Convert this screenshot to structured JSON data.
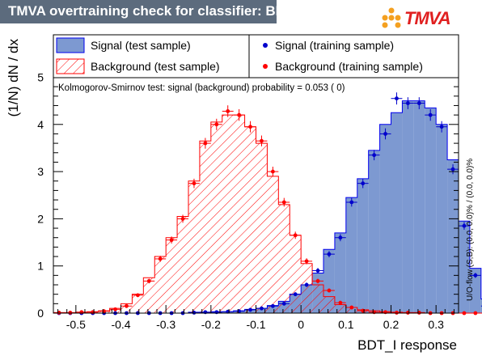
{
  "header": {
    "title": "TMVA overtraining check for classifier: BDT_I"
  },
  "logo": {
    "text": "TMVA"
  },
  "colors": {
    "signal_fill": "#7d99d1",
    "signal_line": "#0000ee",
    "background_hatch": "#ff0000",
    "signal_points": "#0000cc",
    "background_points": "#ff0000",
    "banner": "#5c6b7d"
  },
  "chart_data": {
    "type": "histogram",
    "xlabel": "BDT_I response",
    "ylabel": "(1/N) dN / dx",
    "xlim": [
      -0.55,
      0.35
    ],
    "ylim": [
      0,
      5.9
    ],
    "x_ticks": [
      "-0.5",
      "-0.4",
      "-0.3",
      "-0.2",
      "-0.1",
      "0",
      "0.1",
      "0.2",
      "0.3"
    ],
    "x_tick_values": [
      -0.5,
      -0.4,
      -0.3,
      -0.2,
      -0.1,
      0,
      0.1,
      0.2,
      0.3
    ],
    "y_ticks": [
      "0",
      "1",
      "2",
      "3",
      "4",
      "5"
    ],
    "y_tick_values": [
      0,
      1,
      2,
      3,
      4,
      5
    ],
    "bin_edges_start": -0.55,
    "bin_width": 0.025,
    "annotation": "Kolmogorov-Smirnov test: signal (background) probability = 0.053 (    0)",
    "overflow_note": "U/O-flow (S,B): (0.0, 0.0)% / (0.0, 0.0)%",
    "legend": [
      {
        "label": "Signal (test sample)",
        "kind": "signal-fill"
      },
      {
        "label": "Signal (training sample)",
        "kind": "signal-point"
      },
      {
        "label": "Background (test sample)",
        "kind": "background-hatch"
      },
      {
        "label": "Background (training sample)",
        "kind": "background-point"
      }
    ],
    "series": [
      {
        "name": "Signal (test sample)",
        "values": [
          0,
          0,
          0,
          0,
          0,
          0,
          0,
          0,
          0,
          0,
          0,
          0,
          0.02,
          0.02,
          0.03,
          0.03,
          0.05,
          0.08,
          0.1,
          0.16,
          0.25,
          0.4,
          0.6,
          0.85,
          1.35,
          1.7,
          2.45,
          2.85,
          3.45,
          4.0,
          4.25,
          4.5,
          4.5,
          4.35,
          4.0,
          3.25,
          1.95,
          0.95,
          0.3
        ]
      },
      {
        "name": "Signal (training sample)",
        "values": [
          0,
          0,
          0,
          0,
          0,
          0,
          0,
          0,
          0,
          0,
          0,
          0,
          0.01,
          0.02,
          0.02,
          0.03,
          0.04,
          0.07,
          0.1,
          0.15,
          0.2,
          0.4,
          0.6,
          0.9,
          1.25,
          1.6,
          2.35,
          2.75,
          3.35,
          3.8,
          4.55,
          4.45,
          4.45,
          4.2,
          3.95,
          3.05,
          1.85,
          0.8,
          0.15
        ]
      },
      {
        "name": "Background (test sample)",
        "values": [
          0.01,
          0.01,
          0.02,
          0.03,
          0.05,
          0.1,
          0.2,
          0.4,
          0.75,
          1.2,
          1.6,
          2.05,
          2.8,
          3.65,
          4.05,
          4.2,
          4.2,
          3.95,
          3.6,
          2.9,
          2.3,
          1.65,
          1.05,
          0.6,
          0.35,
          0.18,
          0.12,
          0.07,
          0.05,
          0.03,
          0.02,
          0.01,
          0.01,
          0,
          0,
          0,
          0,
          0,
          0
        ]
      },
      {
        "name": "Background (training sample)",
        "values": [
          0.01,
          0.01,
          0.02,
          0.02,
          0.04,
          0.08,
          0.15,
          0.38,
          0.68,
          1.15,
          1.55,
          2.0,
          2.75,
          3.6,
          4.0,
          4.28,
          4.2,
          3.95,
          3.65,
          3.0,
          2.35,
          1.65,
          1.1,
          0.68,
          0.48,
          0.22,
          0.12,
          0.05,
          0.02,
          0.02,
          0.01,
          0.01,
          0.01,
          0,
          0,
          0,
          0,
          0,
          0
        ]
      }
    ]
  }
}
